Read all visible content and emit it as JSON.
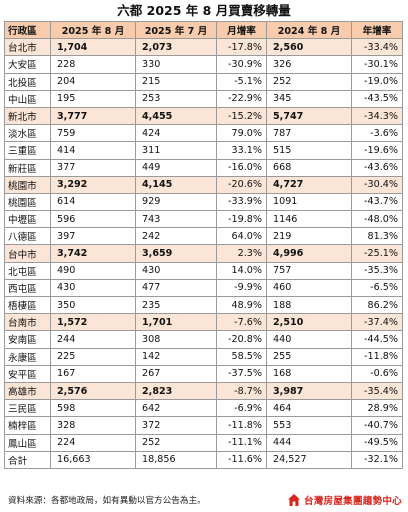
{
  "title": "六都 2025 年 8 月買賣移轉量",
  "table": {
    "headers": [
      "行政區",
      "2025 年 8 月",
      "2025 年 7 月",
      "月增率",
      "2024 年 8 月",
      "年增率"
    ],
    "rows": [
      {
        "type": "city",
        "cells": [
          "台北市",
          "1,704",
          "2,073",
          "-17.8%",
          "2,560",
          "-33.4%"
        ]
      },
      {
        "type": "district",
        "cells": [
          "大安區",
          "228",
          "330",
          "-30.9%",
          "326",
          "-30.1%"
        ]
      },
      {
        "type": "district",
        "cells": [
          "北投區",
          "204",
          "215",
          "-5.1%",
          "252",
          "-19.0%"
        ]
      },
      {
        "type": "district",
        "cells": [
          "中山區",
          "195",
          "253",
          "-22.9%",
          "345",
          "-43.5%"
        ]
      },
      {
        "type": "city",
        "cells": [
          "新北市",
          "3,777",
          "4,455",
          "-15.2%",
          "5,747",
          "-34.3%"
        ]
      },
      {
        "type": "district",
        "cells": [
          "淡水區",
          "759",
          "424",
          "79.0%",
          "787",
          "-3.6%"
        ]
      },
      {
        "type": "district",
        "cells": [
          "三重區",
          "414",
          "311",
          "33.1%",
          "515",
          "-19.6%"
        ]
      },
      {
        "type": "district",
        "cells": [
          "新莊區",
          "377",
          "449",
          "-16.0%",
          "668",
          "-43.6%"
        ]
      },
      {
        "type": "city",
        "cells": [
          "桃園市",
          "3,292",
          "4,145",
          "-20.6%",
          "4,727",
          "-30.4%"
        ]
      },
      {
        "type": "district",
        "cells": [
          "桃園區",
          "614",
          "929",
          "-33.9%",
          "1091",
          "-43.7%"
        ]
      },
      {
        "type": "district",
        "cells": [
          "中壢區",
          "596",
          "743",
          "-19.8%",
          "1146",
          "-48.0%"
        ]
      },
      {
        "type": "district",
        "cells": [
          "八德區",
          "397",
          "242",
          "64.0%",
          "219",
          "81.3%"
        ]
      },
      {
        "type": "city",
        "cells": [
          "台中市",
          "3,742",
          "3,659",
          "2.3%",
          "4,996",
          "-25.1%"
        ]
      },
      {
        "type": "district",
        "cells": [
          "北屯區",
          "490",
          "430",
          "14.0%",
          "757",
          "-35.3%"
        ]
      },
      {
        "type": "district",
        "cells": [
          "西屯區",
          "430",
          "477",
          "-9.9%",
          "460",
          "-6.5%"
        ]
      },
      {
        "type": "district",
        "cells": [
          "梧棲區",
          "350",
          "235",
          "48.9%",
          "188",
          "86.2%"
        ]
      },
      {
        "type": "city",
        "cells": [
          "台南市",
          "1,572",
          "1,701",
          "-7.6%",
          "2,510",
          "-37.4%"
        ]
      },
      {
        "type": "district",
        "cells": [
          "安南區",
          "244",
          "308",
          "-20.8%",
          "440",
          "-44.5%"
        ]
      },
      {
        "type": "district",
        "cells": [
          "永康區",
          "225",
          "142",
          "58.5%",
          "255",
          "-11.8%"
        ]
      },
      {
        "type": "district",
        "cells": [
          "安平區",
          "167",
          "267",
          "-37.5%",
          "168",
          "-0.6%"
        ]
      },
      {
        "type": "city",
        "cells": [
          "高雄市",
          "2,576",
          "2,823",
          "-8.7%",
          "3,987",
          "-35.4%"
        ]
      },
      {
        "type": "district",
        "cells": [
          "三民區",
          "598",
          "642",
          "-6.9%",
          "464",
          "28.9%"
        ]
      },
      {
        "type": "district",
        "cells": [
          "楠梓區",
          "328",
          "372",
          "-11.8%",
          "553",
          "-40.7%"
        ]
      },
      {
        "type": "district",
        "cells": [
          "鳳山區",
          "224",
          "252",
          "-11.1%",
          "444",
          "-49.5%"
        ]
      },
      {
        "type": "total",
        "cells": [
          "合計",
          "16,663",
          "18,856",
          "-11.6%",
          "24,527",
          "-32.1%"
        ]
      }
    ]
  },
  "footer": {
    "source": "資料來源：各都地政局，如有異動以官方公告為主。",
    "brand": "台灣房屋集團趨勢中心",
    "logo_icon": "house-logo-icon",
    "brand_color": "#d7261e"
  },
  "colors": {
    "header_bg": "#f8cbad",
    "city_row_bg": "#fbe5d6",
    "border": "#9a9a9a"
  }
}
